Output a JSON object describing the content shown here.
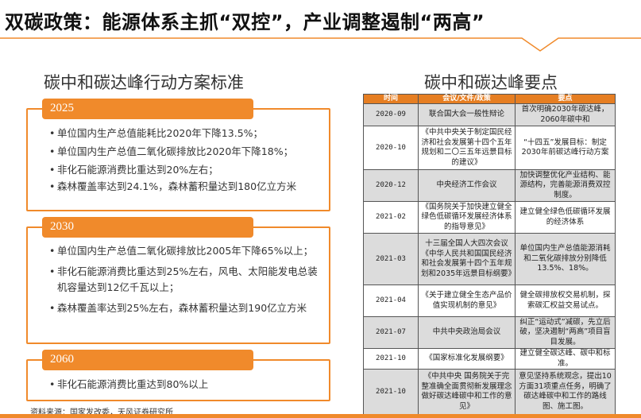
{
  "title": "双碳政策：能源体系主抓“双控”，产业调整遏制“两高”",
  "left": {
    "heading": "碳中和碳达峰行动方案标准",
    "sections": [
      {
        "year": "2025",
        "items": [
          "单位国内生产总值能耗比2020年下降13.5%；",
          "单位国内生产总值二氧化碳排放比2020年下降18%；",
          "非化石能源消费比重达到20%左右；",
          "森林覆盖率达到24.1%，森林蓄积量达到180亿立方米"
        ]
      },
      {
        "year": "2030",
        "items": [
          "单位国内生产总值二氧化碳排放比2005年下降65%以上；",
          "非化石能源消费比重达到25%左右，风电、太阳能发电总装机容量达到12亿千瓦以上；",
          "森林覆盖率达到25%左右，森林蓄积量达到190亿立方米"
        ]
      },
      {
        "year": "2060",
        "items": [
          "非化石能源消费比重达到80%以上"
        ]
      }
    ],
    "source": "资料来源：国家发改委，天风证券研究所"
  },
  "right": {
    "heading": "碳中和碳达峰要点",
    "columns": [
      "时间",
      "会议/文件/政策",
      "要点"
    ],
    "rows": [
      [
        "2020-09",
        "联合国大会一般性辩论",
        "首次明确2030年碳达峰，2060年碳中和"
      ],
      [
        "2020-10",
        "《中共中央关于制定国民经济和社会发展第十四个五年规划和二〇三五年远景目标的建议》",
        "“十四五”发展目标：制定2030年前碳达峰行动方案"
      ],
      [
        "2020-12",
        "中央经济工作会议",
        "加快调整优化产业结构、能源结构，完善能源消费双控制度。"
      ],
      [
        "2021-02",
        "《国务院关于加快建立健全绿色低碳循环发展经济体系的指导意见》",
        "建立健全绿色低碳循环发展的经济体系"
      ],
      [
        "2021-03",
        "十三届全国人大四次会议《中华人民共和国国民经济和社会发展第十四个五年规划和2035年远景目标纲要》",
        "单位国内生产总值能源消耗和二氧化碳排放分别降低13.5%、18%。"
      ],
      [
        "2021-04",
        "《关于建立健全生态产品价值实现机制的意见》",
        "健全碳排放权交易机制，探索碳汇权益交易试点。"
      ],
      [
        "2021-07",
        "中共中央政治局会议",
        "纠正“运动式”减碳，先立后破，坚决遏制“两高”项目盲目发展。"
      ],
      [
        "2021-10",
        "《国家标准化发展纲要》",
        "建立健全碳达峰、碳中和标准。"
      ],
      [
        "2021-10",
        "《中共中央 国务院关于完整准确全面贯彻新发展理念做好碳达峰碳中和工作的意见》",
        "意见坚持系统观念，提出10方面31项重点任务，明确了碳达峰碳中和工作的路线图、施工图。"
      ]
    ]
  },
  "colors": {
    "accent": "#f08a2b",
    "header": "#e67e22",
    "row_gray": "#dcdcdc"
  }
}
